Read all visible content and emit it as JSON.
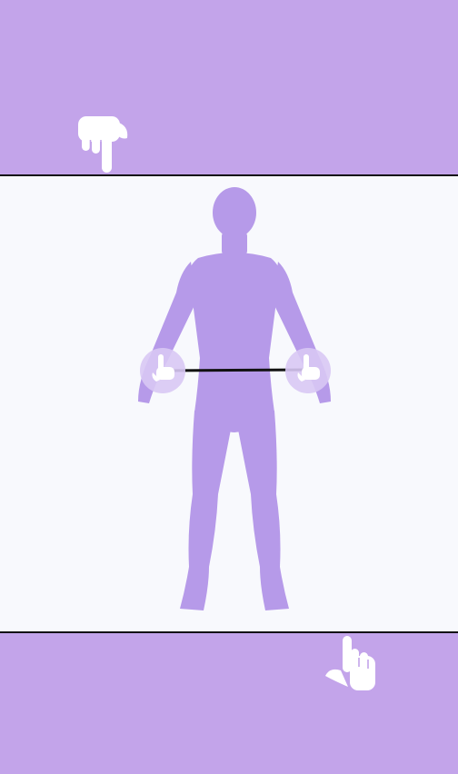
{
  "colors": {
    "background": "#c3a4ea",
    "panel": "#f8f9fd",
    "figure": "#b69ae9",
    "handle_fill": "#d8c8f4",
    "measure_line": "#111111",
    "hand": "#ffffff"
  },
  "icons": {
    "top_hint": "pointing-down-hand-icon",
    "bottom_hint": "pointing-up-hand-icon",
    "left_handle": "tap-hand-icon",
    "right_handle": "tap-hand-icon"
  }
}
